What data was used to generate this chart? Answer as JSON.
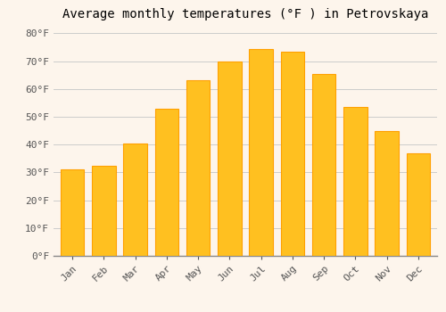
{
  "title": "Average monthly temperatures (°F ) in Petrovskaya",
  "months": [
    "Jan",
    "Feb",
    "Mar",
    "Apr",
    "May",
    "Jun",
    "Jul",
    "Aug",
    "Sep",
    "Oct",
    "Nov",
    "Dec"
  ],
  "values": [
    31,
    32.5,
    40.5,
    53,
    63,
    70,
    74.5,
    73.5,
    65.5,
    53.5,
    45,
    37
  ],
  "bar_color": "#FFC020",
  "bar_edge_color": "#FFA000",
  "background_color": "#FDF5EC",
  "grid_color": "#CCCCCC",
  "ylim": [
    0,
    83
  ],
  "yticks": [
    0,
    10,
    20,
    30,
    40,
    50,
    60,
    70,
    80
  ],
  "ytick_labels": [
    "0°F",
    "10°F",
    "20°F",
    "30°F",
    "40°F",
    "50°F",
    "60°F",
    "70°F",
    "80°F"
  ],
  "title_fontsize": 10,
  "tick_fontsize": 8,
  "font_family": "monospace",
  "bar_width": 0.75
}
